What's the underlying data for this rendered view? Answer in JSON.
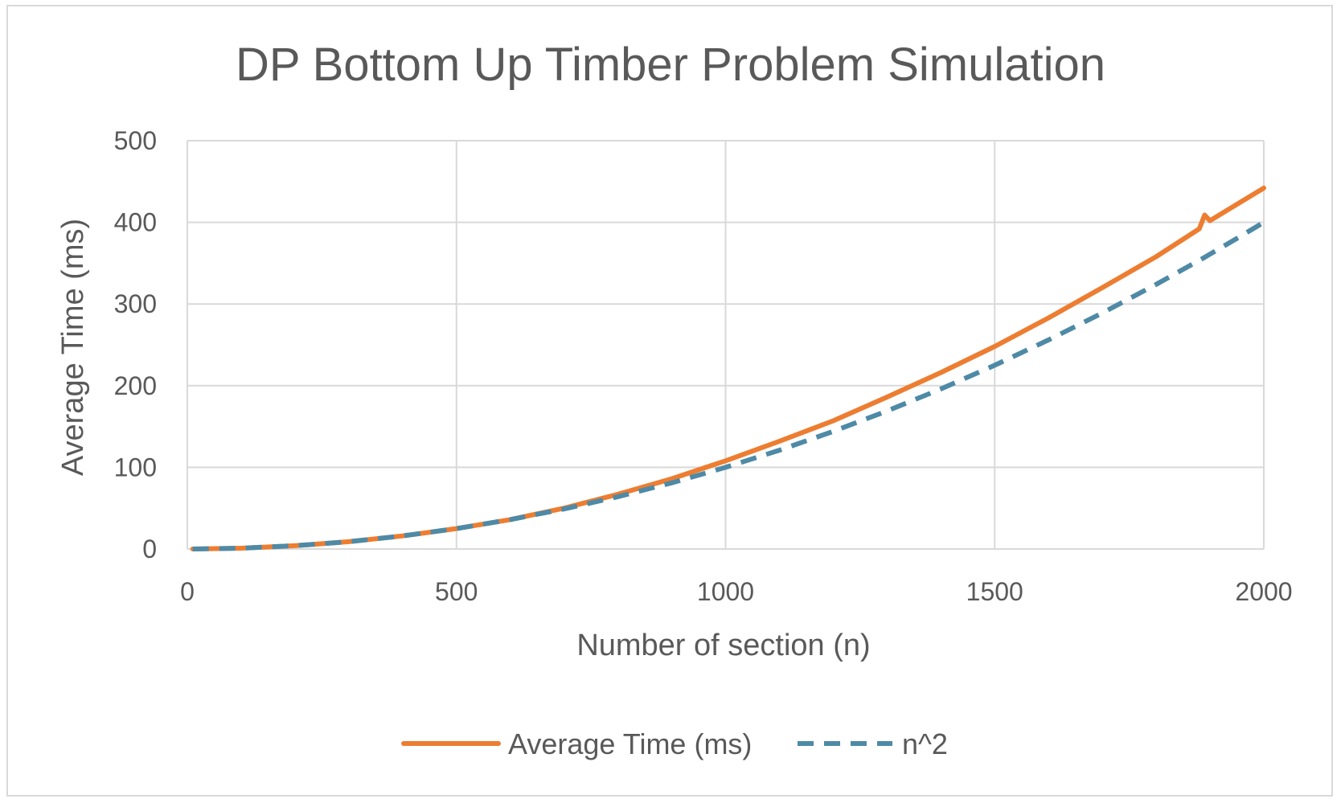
{
  "chart_data": {
    "type": "line",
    "title": "DP Bottom Up Timber Problem Simulation",
    "xlabel": "Number of section (n)",
    "ylabel": "Average Time (ms)",
    "xlim": [
      0,
      2000
    ],
    "ylim": [
      0,
      500
    ],
    "x_ticks": [
      "0",
      "500",
      "1000",
      "1500",
      "2000"
    ],
    "y_ticks": [
      "0",
      "100",
      "200",
      "300",
      "400",
      "500"
    ],
    "grid": true,
    "legend_position": "bottom",
    "x": [
      10,
      100,
      200,
      300,
      400,
      500,
      600,
      700,
      800,
      900,
      1000,
      1100,
      1200,
      1300,
      1400,
      1500,
      1600,
      1700,
      1800,
      1880,
      1890,
      1900,
      1950,
      2000
    ],
    "series": [
      {
        "name": "Average Time (ms)",
        "color": "#ed7d31",
        "style": "solid",
        "values": [
          0,
          1,
          4,
          9,
          16,
          25,
          36,
          50,
          67,
          86,
          108,
          132,
          157,
          186,
          216,
          248,
          283,
          320,
          358,
          392,
          409,
          402,
          422,
          442
        ]
      },
      {
        "name": "n^2",
        "color": "#4e8aa6",
        "style": "dashed",
        "values": [
          0.03,
          1,
          4,
          9,
          16,
          25,
          36,
          49,
          64,
          81,
          100,
          121,
          144,
          169,
          196,
          225,
          256,
          289,
          324,
          353.4,
          357.2,
          361,
          380.3,
          400
        ]
      }
    ]
  }
}
